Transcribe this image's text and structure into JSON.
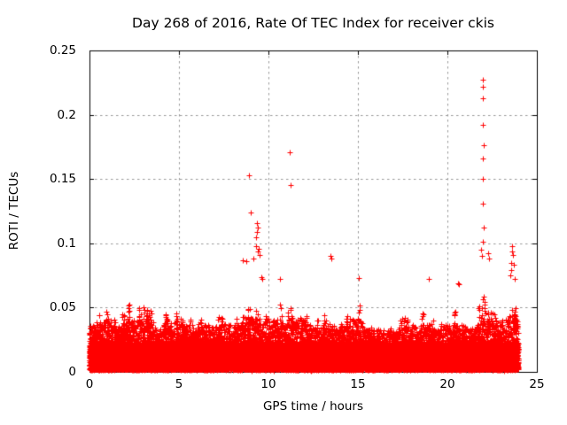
{
  "chart_data": {
    "type": "scatter",
    "title": "Day 268 of 2016, Rate Of TEC Index for receiver ckis",
    "xlabel": "GPS time / hours",
    "ylabel": "ROTI / TECUs",
    "xlim": [
      0,
      25
    ],
    "ylim": [
      0,
      0.25
    ],
    "xticks": {
      "values": [
        0,
        5,
        10,
        15,
        20,
        25
      ],
      "labels": [
        "0",
        "5",
        "10",
        "15",
        "20",
        "25"
      ]
    },
    "yticks": {
      "values": [
        0,
        0.05,
        0.1,
        0.15,
        0.2,
        0.25
      ],
      "labels": [
        "0",
        "0.05",
        "0.1",
        "0.15",
        "0.2",
        "0.25"
      ]
    },
    "grid": true,
    "legend": false,
    "marker": {
      "shape": "plus",
      "size": 7,
      "color": "#ff0000"
    },
    "grid_color": "#999999",
    "frame_color": "#000000",
    "dense_cloud": {
      "t_start": 0,
      "t_end": 23.95,
      "epoch_hours": 0.008333,
      "floor_points": 5,
      "burst_points": 4,
      "v_min": 0.002,
      "floor_band": [
        0.005,
        0.028
      ],
      "seed": 42
    },
    "envelope_max": [
      [
        0,
        0.048
      ],
      [
        0.3,
        0.055
      ],
      [
        0.55,
        0.063
      ],
      [
        0.8,
        0.052
      ],
      [
        0.95,
        0.071
      ],
      [
        1.15,
        0.068
      ],
      [
        1.4,
        0.055
      ],
      [
        1.7,
        0.05
      ],
      [
        2.0,
        0.081
      ],
      [
        2.2,
        0.081
      ],
      [
        2.5,
        0.06
      ],
      [
        2.8,
        0.075
      ],
      [
        3.1,
        0.076
      ],
      [
        3.4,
        0.06
      ],
      [
        3.7,
        0.048
      ],
      [
        4.0,
        0.05
      ],
      [
        4.35,
        0.077
      ],
      [
        4.6,
        0.055
      ],
      [
        4.9,
        0.055
      ],
      [
        5.2,
        0.062
      ],
      [
        5.5,
        0.068
      ],
      [
        5.8,
        0.05
      ],
      [
        6.1,
        0.045
      ],
      [
        6.4,
        0.052
      ],
      [
        6.7,
        0.048
      ],
      [
        7.0,
        0.05
      ],
      [
        7.3,
        0.066
      ],
      [
        7.6,
        0.055
      ],
      [
        7.9,
        0.055
      ],
      [
        8.2,
        0.065
      ],
      [
        8.5,
        0.07
      ],
      [
        8.8,
        0.078
      ],
      [
        9.1,
        0.08
      ],
      [
        9.4,
        0.082
      ],
      [
        9.7,
        0.06
      ],
      [
        10.0,
        0.055
      ],
      [
        10.3,
        0.05
      ],
      [
        10.6,
        0.072
      ],
      [
        10.9,
        0.06
      ],
      [
        11.2,
        0.068
      ],
      [
        11.5,
        0.065
      ],
      [
        11.8,
        0.062
      ],
      [
        12.1,
        0.06
      ],
      [
        12.4,
        0.055
      ],
      [
        12.7,
        0.05
      ],
      [
        13.0,
        0.052
      ],
      [
        13.3,
        0.058
      ],
      [
        13.6,
        0.052
      ],
      [
        13.9,
        0.045
      ],
      [
        14.2,
        0.05
      ],
      [
        14.5,
        0.055
      ],
      [
        14.8,
        0.066
      ],
      [
        15.1,
        0.073
      ],
      [
        15.4,
        0.05
      ],
      [
        15.7,
        0.042
      ],
      [
        16.0,
        0.045
      ],
      [
        16.3,
        0.04
      ],
      [
        16.6,
        0.042
      ],
      [
        16.9,
        0.045
      ],
      [
        17.2,
        0.05
      ],
      [
        17.5,
        0.062
      ],
      [
        17.8,
        0.058
      ],
      [
        18.1,
        0.055
      ],
      [
        18.4,
        0.05
      ],
      [
        18.7,
        0.06
      ],
      [
        19.0,
        0.072
      ],
      [
        19.3,
        0.06
      ],
      [
        19.6,
        0.048
      ],
      [
        19.9,
        0.05
      ],
      [
        20.2,
        0.06
      ],
      [
        20.5,
        0.072
      ],
      [
        20.8,
        0.055
      ],
      [
        21.1,
        0.06
      ],
      [
        21.4,
        0.062
      ],
      [
        21.7,
        0.07
      ],
      [
        22.0,
        0.08
      ],
      [
        22.3,
        0.075
      ],
      [
        22.6,
        0.062
      ],
      [
        22.9,
        0.058
      ],
      [
        23.2,
        0.065
      ],
      [
        23.5,
        0.08
      ],
      [
        23.8,
        0.085
      ],
      [
        24.0,
        0.06
      ]
    ],
    "outliers": [
      [
        8.55,
        0.087
      ],
      [
        8.75,
        0.086
      ],
      [
        8.9,
        0.153
      ],
      [
        9.0,
        0.124
      ],
      [
        9.15,
        0.088
      ],
      [
        9.3,
        0.098
      ],
      [
        9.33,
        0.105
      ],
      [
        9.35,
        0.116
      ],
      [
        9.38,
        0.109
      ],
      [
        9.4,
        0.112
      ],
      [
        9.42,
        0.094
      ],
      [
        9.45,
        0.096
      ],
      [
        9.5,
        0.091
      ],
      [
        9.6,
        0.074
      ],
      [
        9.65,
        0.072
      ],
      [
        10.62,
        0.072
      ],
      [
        11.2,
        0.171
      ],
      [
        11.22,
        0.145
      ],
      [
        13.45,
        0.09
      ],
      [
        13.5,
        0.088
      ],
      [
        15.05,
        0.073
      ],
      [
        18.95,
        0.072
      ],
      [
        20.6,
        0.069
      ],
      [
        20.65,
        0.068
      ],
      [
        21.9,
        0.095
      ],
      [
        21.95,
        0.09
      ],
      [
        22.0,
        0.227
      ],
      [
        22.0,
        0.222
      ],
      [
        22.0,
        0.213
      ],
      [
        22.0,
        0.192
      ],
      [
        22.02,
        0.176
      ],
      [
        22.0,
        0.166
      ],
      [
        22.0,
        0.15
      ],
      [
        22.0,
        0.131
      ],
      [
        22.05,
        0.112
      ],
      [
        22.0,
        0.101
      ],
      [
        22.3,
        0.092
      ],
      [
        22.35,
        0.088
      ],
      [
        23.5,
        0.075
      ],
      [
        23.55,
        0.085
      ],
      [
        23.58,
        0.079
      ],
      [
        23.6,
        0.098
      ],
      [
        23.62,
        0.094
      ],
      [
        23.65,
        0.091
      ],
      [
        23.7,
        0.083
      ],
      [
        23.75,
        0.072
      ]
    ]
  }
}
